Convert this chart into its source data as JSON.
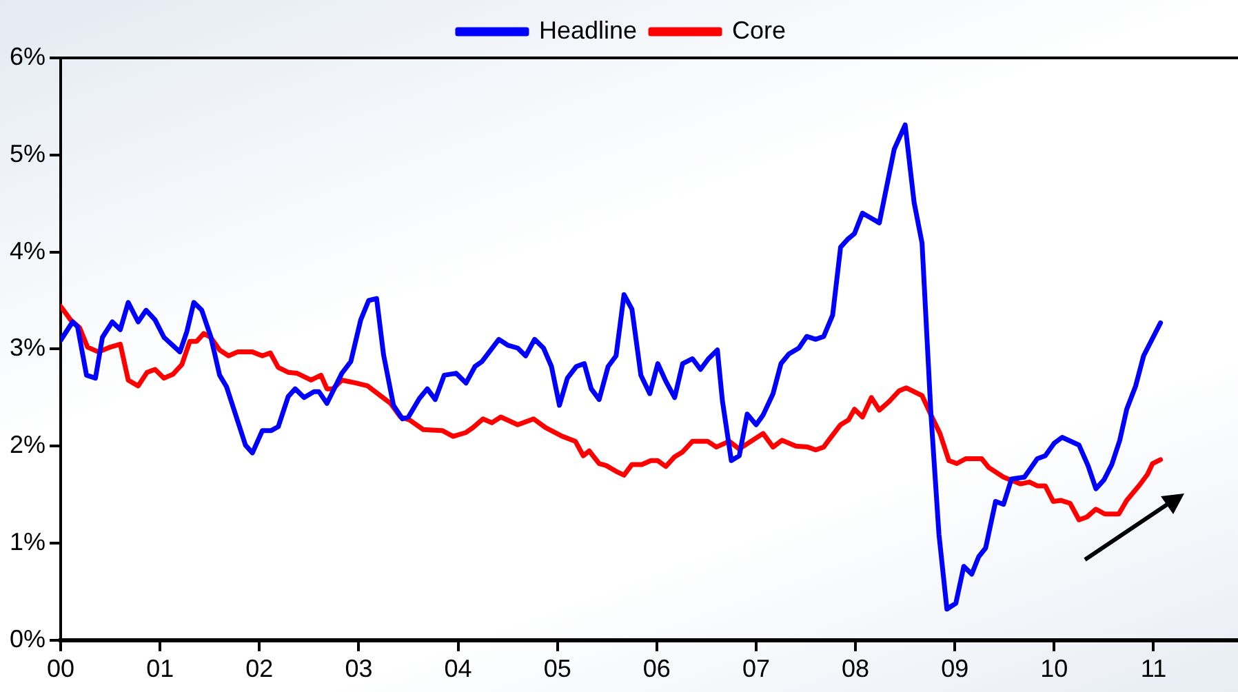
{
  "chart_data": {
    "type": "line",
    "legend": "top",
    "grid": false,
    "xlim": [
      0,
      11.85
    ],
    "xticks": [
      {
        "value": 0,
        "label": "00"
      },
      {
        "value": 1,
        "label": "01"
      },
      {
        "value": 2,
        "label": "02"
      },
      {
        "value": 3,
        "label": "03"
      },
      {
        "value": 4,
        "label": "04"
      },
      {
        "value": 5,
        "label": "05"
      },
      {
        "value": 6,
        "label": "06"
      },
      {
        "value": 7,
        "label": "07"
      },
      {
        "value": 8,
        "label": "08"
      },
      {
        "value": 9,
        "label": "09"
      },
      {
        "value": 10,
        "label": "10"
      },
      {
        "value": 11,
        "label": "11"
      }
    ],
    "ylim": [
      0,
      6
    ],
    "yticks": [
      {
        "value": 0,
        "label": "0%"
      },
      {
        "value": 1,
        "label": "1%"
      },
      {
        "value": 2,
        "label": "2%"
      },
      {
        "value": 3,
        "label": "3%"
      },
      {
        "value": 4,
        "label": "4%"
      },
      {
        "value": 5,
        "label": "5%"
      },
      {
        "value": 6,
        "label": "6%"
      }
    ],
    "series": [
      {
        "name": "Headline",
        "color": "#0000ff",
        "x": [
          0,
          0.12,
          0.17,
          0.26,
          0.35,
          0.42,
          0.52,
          0.6,
          0.68,
          0.78,
          0.86,
          0.95,
          1.04,
          1.2,
          1.27,
          1.34,
          1.42,
          1.51,
          1.6,
          1.67,
          1.86,
          1.93,
          2.03,
          2.12,
          2.19,
          2.29,
          2.36,
          2.45,
          2.55,
          2.6,
          2.68,
          2.83,
          2.92,
          3.02,
          3.1,
          3.18,
          3.25,
          3.35,
          3.44,
          3.5,
          3.61,
          3.69,
          3.77,
          3.86,
          3.98,
          4.08,
          4.17,
          4.24,
          4.41,
          4.5,
          4.6,
          4.68,
          4.77,
          4.86,
          4.94,
          5.02,
          5.1,
          5.19,
          5.27,
          5.34,
          5.42,
          5.51,
          5.59,
          5.67,
          5.75,
          5.84,
          5.93,
          6.01,
          6.09,
          6.18,
          6.26,
          6.36,
          6.44,
          6.52,
          6.61,
          6.66,
          6.75,
          6.83,
          6.91,
          7,
          7.07,
          7.17,
          7.25,
          7.33,
          7.43,
          7.51,
          7.6,
          7.68,
          7.77,
          7.85,
          7.92,
          7.99,
          8.07,
          8.24,
          8.39,
          8.5,
          8.59,
          8.67,
          8.76,
          8.84,
          8.92,
          9.01,
          9.09,
          9.17,
          9.24,
          9.31,
          9.41,
          9.49,
          9.57,
          9.7,
          9.83,
          9.91,
          10,
          10.08,
          10.25,
          10.34,
          10.42,
          10.5,
          10.58,
          10.66,
          10.73,
          10.82,
          10.9,
          11.07
        ],
        "values": [
          3.09,
          3.28,
          3.23,
          2.73,
          2.7,
          3.12,
          3.28,
          3.2,
          3.48,
          3.28,
          3.4,
          3.3,
          3.12,
          2.97,
          3.18,
          3.48,
          3.4,
          3.13,
          2.73,
          2.61,
          2.01,
          1.93,
          2.16,
          2.16,
          2.2,
          2.51,
          2.59,
          2.5,
          2.56,
          2.56,
          2.44,
          2.75,
          2.87,
          3.3,
          3.5,
          3.52,
          2.94,
          2.42,
          2.28,
          2.3,
          2.49,
          2.59,
          2.48,
          2.73,
          2.75,
          2.65,
          2.82,
          2.87,
          3.1,
          3.04,
          3.01,
          2.93,
          3.1,
          3.01,
          2.82,
          2.42,
          2.7,
          2.82,
          2.85,
          2.59,
          2.48,
          2.82,
          2.93,
          3.56,
          3.41,
          2.73,
          2.54,
          2.85,
          2.67,
          2.5,
          2.85,
          2.9,
          2.79,
          2.9,
          2.99,
          2.47,
          1.85,
          1.9,
          2.33,
          2.22,
          2.32,
          2.54,
          2.85,
          2.95,
          3.01,
          3.13,
          3.1,
          3.13,
          3.35,
          4.05,
          4.13,
          4.19,
          4.4,
          4.3,
          5.06,
          5.31,
          4.51,
          4.09,
          2.32,
          1.09,
          0.32,
          0.38,
          0.76,
          0.68,
          0.86,
          0.95,
          1.43,
          1.4,
          1.66,
          1.68,
          1.87,
          1.9,
          2.03,
          2.09,
          2.01,
          1.8,
          1.56,
          1.65,
          1.81,
          2.06,
          2.38,
          2.62,
          2.93,
          3.27
        ]
      },
      {
        "name": "Core",
        "color": "#ff0000",
        "x": [
          0,
          0.1,
          0.19,
          0.27,
          0.38,
          0.5,
          0.6,
          0.68,
          0.78,
          0.87,
          0.95,
          1.04,
          1.13,
          1.22,
          1.3,
          1.37,
          1.44,
          1.51,
          1.6,
          1.69,
          1.78,
          1.93,
          2.03,
          2.11,
          2.19,
          2.29,
          2.38,
          2.52,
          2.62,
          2.68,
          2.74,
          2.83,
          2.97,
          3.09,
          3.23,
          3.32,
          3.42,
          3.51,
          3.65,
          3.84,
          3.95,
          4.08,
          4.15,
          4.25,
          4.34,
          4.43,
          4.6,
          4.76,
          4.88,
          5.05,
          5.18,
          5.26,
          5.32,
          5.42,
          5.49,
          5.59,
          5.67,
          5.75,
          5.85,
          5.94,
          6.01,
          6.09,
          6.18,
          6.26,
          6.36,
          6.51,
          6.6,
          6.73,
          6.83,
          7.07,
          7.17,
          7.26,
          7.4,
          7.52,
          7.6,
          7.68,
          7.73,
          7.85,
          7.93,
          7.99,
          8.07,
          8.16,
          8.24,
          8.34,
          8.44,
          8.51,
          8.67,
          8.76,
          8.85,
          8.94,
          9.02,
          9.11,
          9.27,
          9.34,
          9.49,
          9.66,
          9.75,
          9.83,
          9.91,
          9.99,
          10.07,
          10.16,
          10.25,
          10.33,
          10.42,
          10.51,
          10.65,
          10.73,
          10.86,
          10.94,
          10.99,
          11.07
        ],
        "values": [
          3.44,
          3.3,
          3.22,
          3.02,
          2.97,
          3.02,
          3.05,
          2.68,
          2.62,
          2.76,
          2.79,
          2.7,
          2.74,
          2.84,
          3.08,
          3.08,
          3.16,
          3.12,
          2.99,
          2.93,
          2.97,
          2.97,
          2.93,
          2.96,
          2.81,
          2.76,
          2.75,
          2.68,
          2.73,
          2.59,
          2.59,
          2.68,
          2.65,
          2.62,
          2.51,
          2.44,
          2.3,
          2.27,
          2.17,
          2.16,
          2.1,
          2.14,
          2.19,
          2.28,
          2.24,
          2.3,
          2.22,
          2.28,
          2.19,
          2.1,
          2.05,
          1.9,
          1.95,
          1.82,
          1.8,
          1.74,
          1.7,
          1.81,
          1.81,
          1.85,
          1.85,
          1.79,
          1.89,
          1.94,
          2.05,
          2.05,
          1.99,
          2.05,
          1.97,
          2.13,
          1.99,
          2.06,
          2,
          1.99,
          1.96,
          1.99,
          2.06,
          2.22,
          2.27,
          2.38,
          2.3,
          2.5,
          2.37,
          2.46,
          2.57,
          2.6,
          2.52,
          2.32,
          2.13,
          1.85,
          1.82,
          1.87,
          1.87,
          1.78,
          1.68,
          1.61,
          1.63,
          1.59,
          1.59,
          1.43,
          1.44,
          1.41,
          1.24,
          1.27,
          1.35,
          1.3,
          1.3,
          1.44,
          1.6,
          1.71,
          1.82,
          1.86
        ]
      }
    ]
  }
}
